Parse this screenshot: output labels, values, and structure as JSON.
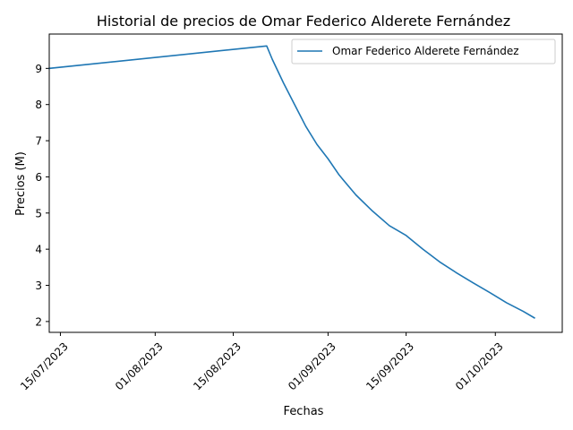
{
  "chart_data": {
    "type": "line",
    "title": "Historial de precios de Omar Federico Alderete Fernández",
    "xlabel": "Fechas",
    "ylabel": "Precios (M)",
    "x_type": "date",
    "xlim": [
      "2023-07-13",
      "2023-10-13"
    ],
    "ylim": [
      1.7,
      9.95
    ],
    "x_ticks": [
      {
        "date": "2023-07-15",
        "label": "15/07/2023"
      },
      {
        "date": "2023-08-01",
        "label": "01/08/2023"
      },
      {
        "date": "2023-08-15",
        "label": "15/08/2023"
      },
      {
        "date": "2023-09-01",
        "label": "01/09/2023"
      },
      {
        "date": "2023-09-15",
        "label": "15/09/2023"
      },
      {
        "date": "2023-10-01",
        "label": "01/10/2023"
      }
    ],
    "y_ticks": [
      2,
      3,
      4,
      5,
      6,
      7,
      8,
      9
    ],
    "grid": false,
    "legend_position": "top-right",
    "series": [
      {
        "name": "Omar Federico Alderete Fernández",
        "color": "#1f77b4",
        "points": [
          {
            "x": "2023-07-13",
            "y": 9.0
          },
          {
            "x": "2023-08-21",
            "y": 9.62
          },
          {
            "x": "2023-08-22",
            "y": 9.25
          },
          {
            "x": "2023-08-24",
            "y": 8.6
          },
          {
            "x": "2023-08-26",
            "y": 8.0
          },
          {
            "x": "2023-08-28",
            "y": 7.4
          },
          {
            "x": "2023-08-30",
            "y": 6.9
          },
          {
            "x": "2023-09-01",
            "y": 6.5
          },
          {
            "x": "2023-09-03",
            "y": 6.05
          },
          {
            "x": "2023-09-06",
            "y": 5.5
          },
          {
            "x": "2023-09-09",
            "y": 5.05
          },
          {
            "x": "2023-09-12",
            "y": 4.65
          },
          {
            "x": "2023-09-15",
            "y": 4.38
          },
          {
            "x": "2023-09-18",
            "y": 4.0
          },
          {
            "x": "2023-09-21",
            "y": 3.65
          },
          {
            "x": "2023-09-24",
            "y": 3.35
          },
          {
            "x": "2023-09-27",
            "y": 3.07
          },
          {
            "x": "2023-09-30",
            "y": 2.8
          },
          {
            "x": "2023-10-03",
            "y": 2.52
          },
          {
            "x": "2023-10-06",
            "y": 2.28
          },
          {
            "x": "2023-10-08",
            "y": 2.1
          }
        ]
      }
    ]
  }
}
